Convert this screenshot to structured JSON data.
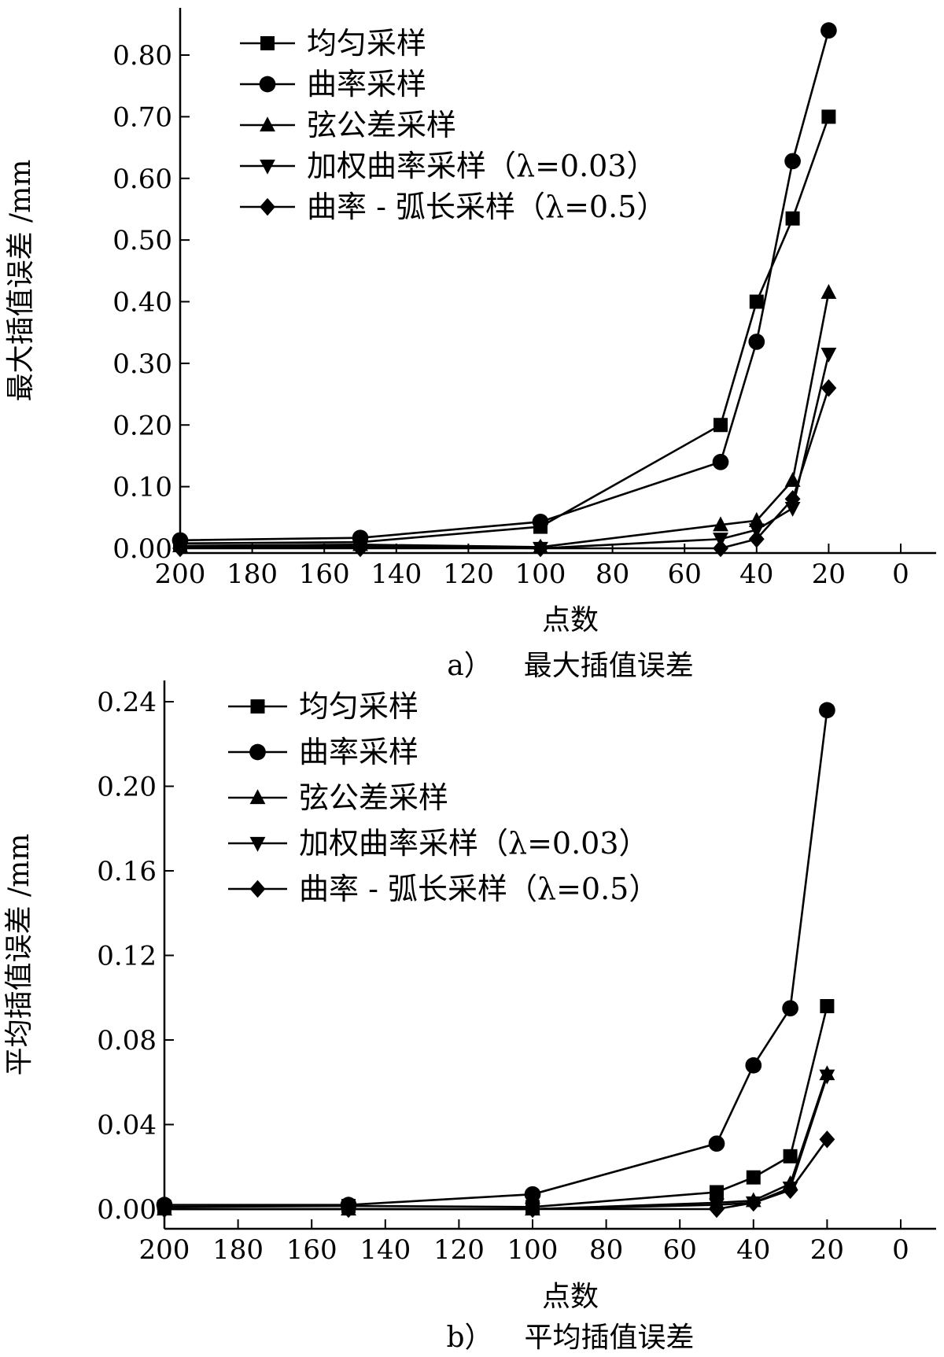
{
  "chart_data": [
    {
      "type": "line",
      "id": "a",
      "caption_prefix": "a）",
      "caption": "最大插值误差",
      "xlabel": "点数",
      "ylabel": "最大插值误差 /mm",
      "xlim": [
        200,
        0
      ],
      "ylim": [
        0,
        0.85
      ],
      "x_ticks": [
        200,
        180,
        160,
        140,
        120,
        100,
        80,
        60,
        40,
        20,
        0
      ],
      "x_tick_labels": [
        "200",
        "180",
        "160",
        "140",
        "120",
        "100",
        "80",
        "60",
        "40",
        "20",
        "0"
      ],
      "y_ticks": [
        0,
        0.1,
        0.2,
        0.3,
        0.4,
        0.5,
        0.6,
        0.7,
        0.8
      ],
      "y_tick_labels": [
        "0.00",
        "0.10",
        "0.20",
        "0.30",
        "0.40",
        "0.50",
        "0.60",
        "0.70",
        "0.80"
      ],
      "legend_position": "top-left",
      "series": [
        {
          "name": "均匀采样",
          "marker": "square",
          "x": [
            200,
            150,
            100,
            50,
            40,
            30,
            20
          ],
          "values": [
            0.008,
            0.01,
            0.035,
            0.2,
            0.4,
            0.535,
            0.7
          ]
        },
        {
          "name": "曲率采样",
          "marker": "circle",
          "x": [
            200,
            150,
            100,
            50,
            40,
            30,
            20
          ],
          "values": [
            0.013,
            0.017,
            0.043,
            0.14,
            0.335,
            0.628,
            0.84
          ]
        },
        {
          "name": "弦公差采样",
          "marker": "triangle-up",
          "x": [
            200,
            150,
            100,
            50,
            40,
            30,
            20
          ],
          "values": [
            0.004,
            0.006,
            0.002,
            0.038,
            0.045,
            0.11,
            0.415
          ]
        },
        {
          "name": "加权曲率采样（λ=0.03）",
          "marker": "triangle-down",
          "x": [
            200,
            150,
            100,
            50,
            40,
            30,
            20
          ],
          "values": [
            0.002,
            0.003,
            0.0,
            0.015,
            0.03,
            0.065,
            0.315
          ]
        },
        {
          "name": "曲率 - 弧长采样（λ=0.5）",
          "marker": "diamond",
          "x": [
            200,
            150,
            100,
            50,
            40,
            30,
            20
          ],
          "values": [
            0.0,
            0.0,
            0.0,
            0.0,
            0.015,
            0.08,
            0.26
          ]
        }
      ]
    },
    {
      "type": "line",
      "id": "b",
      "caption_prefix": "b）",
      "caption": "平均插值误差",
      "xlabel": "点数",
      "ylabel": "平均插值误差 /mm",
      "xlim": [
        200,
        0
      ],
      "ylim": [
        0,
        0.245
      ],
      "x_ticks": [
        200,
        180,
        160,
        140,
        120,
        100,
        80,
        60,
        40,
        20,
        0
      ],
      "x_tick_labels": [
        "200",
        "180",
        "160",
        "140",
        "120",
        "100",
        "80",
        "60",
        "40",
        "20",
        "0"
      ],
      "y_ticks": [
        0,
        0.04,
        0.08,
        0.12,
        0.16,
        0.2,
        0.24
      ],
      "y_tick_labels": [
        "0.00",
        "0.04",
        "0.08",
        "0.12",
        "0.16",
        "0.20",
        "0.24"
      ],
      "legend_position": "top-left",
      "series": [
        {
          "name": "均匀采样",
          "marker": "square",
          "x": [
            200,
            150,
            100,
            50,
            40,
            30,
            20
          ],
          "values": [
            0.001,
            0.0015,
            0.001,
            0.008,
            0.015,
            0.025,
            0.096
          ]
        },
        {
          "name": "曲率采样",
          "marker": "circle",
          "x": [
            200,
            150,
            100,
            50,
            40,
            30,
            20
          ],
          "values": [
            0.002,
            0.002,
            0.007,
            0.031,
            0.068,
            0.095,
            0.236
          ]
        },
        {
          "name": "弦公差采样",
          "marker": "triangle-up",
          "x": [
            200,
            150,
            100,
            50,
            40,
            30,
            20
          ],
          "values": [
            0.0,
            0.0,
            0.0,
            0.003,
            0.004,
            0.012,
            0.064
          ]
        },
        {
          "name": "加权曲率采样（λ=0.03）",
          "marker": "triangle-down",
          "x": [
            200,
            150,
            100,
            50,
            40,
            30,
            20
          ],
          "values": [
            0.0,
            0.0,
            0.0,
            0.002,
            0.003,
            0.01,
            0.063
          ]
        },
        {
          "name": "曲率 - 弧长采样（λ=0.5）",
          "marker": "diamond",
          "x": [
            200,
            150,
            100,
            50,
            40,
            30,
            20
          ],
          "values": [
            0.0,
            0.0,
            0.0,
            0.0,
            0.003,
            0.009,
            0.033
          ]
        }
      ]
    }
  ]
}
